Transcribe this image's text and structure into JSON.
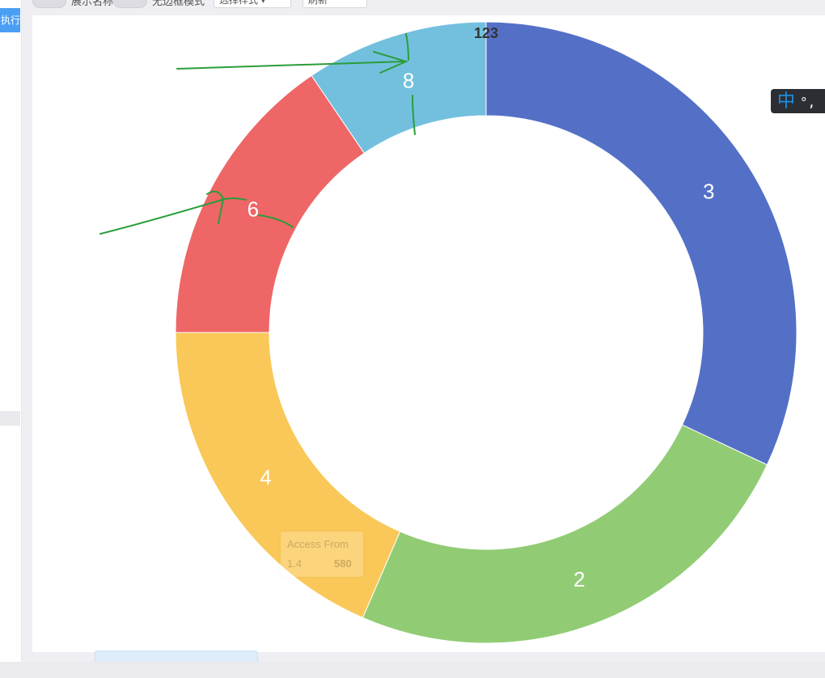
{
  "sidebar": {
    "run_label": "执行"
  },
  "toolbar": {
    "toggle1_label": "展示名称",
    "toggle2_label": "无边框模式",
    "button1_label": "选择样式 ▾",
    "button2_label": "刷新"
  },
  "ime": {
    "char": "中",
    "punct": "°,"
  },
  "tooltip": {
    "title": "Access From",
    "name": "1.4",
    "value": "580"
  },
  "colors": {
    "blue": "#5470c6",
    "green": "#91cc75",
    "yellow": "#fac858",
    "red": "#ee6666",
    "cyan": "#73c0de",
    "annotation": "#2a9d3a"
  },
  "chart_data": {
    "type": "pie",
    "variant": "donut",
    "center_label": "123",
    "start_angle_deg": 90,
    "direction": "clockwise",
    "slices": [
      {
        "label": "3",
        "value": 32,
        "color": "#5470c6"
      },
      {
        "label": "2",
        "value": 24.5,
        "color": "#91cc75"
      },
      {
        "label": "4",
        "value": 18.5,
        "color": "#fac858"
      },
      {
        "label": "6",
        "value": 15.5,
        "color": "#ee6666"
      },
      {
        "label": "8",
        "value": 9.5,
        "color": "#73c0de"
      }
    ]
  }
}
